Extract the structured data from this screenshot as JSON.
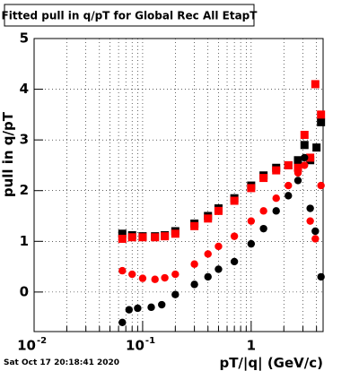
{
  "chart_data": {
    "type": "scatter",
    "title": "Fitted pull in q/pT for Global Rec All EtapT",
    "x_label": "pT/|q| (GeV/c)",
    "y_label": "pull in q/pT",
    "footer": "Sat Oct 17 20:18:41 2020",
    "log_x": true,
    "grid": true,
    "xlim": [
      0.01,
      4.6
    ],
    "ylim": [
      -0.78,
      5
    ],
    "xticks": [
      {
        "value": 0.01,
        "label": "10",
        "exponent": "-2"
      },
      {
        "value": 0.1,
        "label": "10",
        "exponent": "-1"
      },
      1
    ],
    "xminorticks": [
      0.02,
      0.03,
      0.04,
      0.05,
      0.06,
      0.07,
      0.08,
      0.09,
      0.2,
      0.3,
      0.4,
      0.5,
      0.6,
      0.7,
      0.8,
      0.9,
      2,
      3,
      4
    ],
    "yticks": [
      0,
      1,
      2,
      3,
      4,
      5
    ],
    "series": [
      {
        "color": "#000000",
        "marker": "square",
        "x": [
          0.065,
          0.08,
          0.1,
          0.13,
          0.16,
          0.2,
          0.3,
          0.4,
          0.5,
          0.7,
          1.0,
          1.3,
          1.7,
          2.2,
          2.7,
          3.1,
          3.5,
          4.0,
          4.4
        ],
        "values": [
          1.15,
          1.12,
          1.1,
          1.1,
          1.12,
          1.2,
          1.35,
          1.5,
          1.65,
          1.85,
          2.1,
          2.3,
          2.45,
          2.5,
          2.6,
          2.9,
          2.6,
          2.85,
          3.35
        ]
      },
      {
        "color": "#ff0000",
        "marker": "square",
        "x": [
          0.065,
          0.08,
          0.1,
          0.13,
          0.16,
          0.2,
          0.3,
          0.4,
          0.5,
          0.7,
          1.0,
          1.3,
          1.7,
          2.2,
          2.7,
          3.1,
          3.5,
          3.9,
          4.4
        ],
        "values": [
          1.05,
          1.08,
          1.08,
          1.08,
          1.1,
          1.15,
          1.3,
          1.45,
          1.6,
          1.8,
          2.05,
          2.25,
          2.4,
          2.5,
          2.45,
          3.1,
          2.65,
          4.1,
          3.5
        ]
      },
      {
        "color": "#000000",
        "marker": "circle",
        "x": [
          0.065,
          0.075,
          0.09,
          0.12,
          0.15,
          0.2,
          0.3,
          0.4,
          0.5,
          0.7,
          1.0,
          1.3,
          1.7,
          2.2,
          2.7,
          3.1,
          3.5,
          3.9,
          4.4
        ],
        "values": [
          -0.6,
          -0.35,
          -0.32,
          -0.3,
          -0.25,
          -0.05,
          0.15,
          0.3,
          0.45,
          0.6,
          0.95,
          1.25,
          1.6,
          1.9,
          2.2,
          2.65,
          1.65,
          1.2,
          0.3
        ]
      },
      {
        "color": "#ff0000",
        "marker": "circle",
        "x": [
          0.065,
          0.08,
          0.1,
          0.13,
          0.16,
          0.2,
          0.3,
          0.4,
          0.5,
          0.7,
          1.0,
          1.3,
          1.7,
          2.2,
          2.7,
          3.1,
          3.5,
          3.9,
          4.4
        ],
        "values": [
          0.42,
          0.35,
          0.27,
          0.25,
          0.28,
          0.35,
          0.55,
          0.75,
          0.9,
          1.1,
          1.4,
          1.6,
          1.85,
          2.1,
          2.35,
          2.5,
          1.4,
          1.05,
          2.1
        ]
      }
    ]
  }
}
